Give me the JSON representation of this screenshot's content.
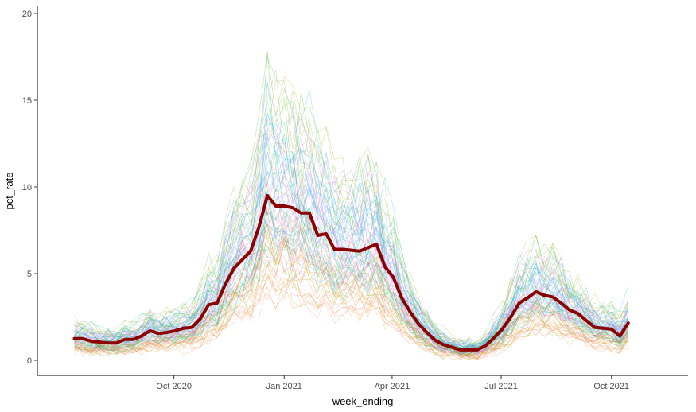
{
  "chart_data": {
    "type": "line",
    "xlabel": "week_ending",
    "ylabel": "pct_rate",
    "x_axis": {
      "type": "date",
      "range": [
        "2020-07-03",
        "2021-11-12"
      ],
      "ticks": [
        {
          "date": "2020-10-01",
          "label": "Oct 2020"
        },
        {
          "date": "2021-01-01",
          "label": "Jan 2021"
        },
        {
          "date": "2021-04-01",
          "label": "Apr 2021"
        },
        {
          "date": "2021-07-01",
          "label": "Jul 2021"
        },
        {
          "date": "2021-10-01",
          "label": "Oct 2021"
        }
      ]
    },
    "y_axis": {
      "range": [
        0,
        20
      ],
      "ticks": [
        0,
        5,
        10,
        15,
        20
      ]
    },
    "grid": false,
    "legend": "none",
    "background_series": {
      "count": 80,
      "line_width": 0.6,
      "opacity": 0.35,
      "colors": [
        "#F8766D",
        "#E7861B",
        "#C59900",
        "#95A900",
        "#39B600",
        "#00BF7D",
        "#00BFC4",
        "#00ACFC",
        "#619CFF",
        "#C77CFF",
        "#F564E3",
        "#FF64B0"
      ]
    },
    "series": [
      {
        "color": "#8B0000",
        "line_width": 4,
        "points": [
          [
            "2020-07-10",
            1.25
          ],
          [
            "2020-07-17",
            1.25
          ],
          [
            "2020-07-24",
            1.1
          ],
          [
            "2020-07-31",
            1.05
          ],
          [
            "2020-08-07",
            1.0
          ],
          [
            "2020-08-14",
            1.0
          ],
          [
            "2020-08-21",
            1.2
          ],
          [
            "2020-08-28",
            1.2
          ],
          [
            "2020-09-04",
            1.4
          ],
          [
            "2020-09-11",
            1.7
          ],
          [
            "2020-09-18",
            1.55
          ],
          [
            "2020-09-25",
            1.6
          ],
          [
            "2020-10-02",
            1.7
          ],
          [
            "2020-10-09",
            1.85
          ],
          [
            "2020-10-16",
            1.9
          ],
          [
            "2020-10-23",
            2.4
          ],
          [
            "2020-10-30",
            3.2
          ],
          [
            "2020-11-06",
            3.3
          ],
          [
            "2020-11-13",
            4.4
          ],
          [
            "2020-11-20",
            5.3
          ],
          [
            "2020-11-27",
            5.8
          ],
          [
            "2020-12-04",
            6.3
          ],
          [
            "2020-12-11",
            7.7
          ],
          [
            "2020-12-18",
            9.5
          ],
          [
            "2020-12-25",
            8.9
          ],
          [
            "2021-01-01",
            8.9
          ],
          [
            "2021-01-08",
            8.8
          ],
          [
            "2021-01-15",
            8.5
          ],
          [
            "2021-01-22",
            8.5
          ],
          [
            "2021-01-29",
            7.2
          ],
          [
            "2021-02-05",
            7.3
          ],
          [
            "2021-02-12",
            6.4
          ],
          [
            "2021-02-19",
            6.4
          ],
          [
            "2021-02-26",
            6.35
          ],
          [
            "2021-03-05",
            6.3
          ],
          [
            "2021-03-12",
            6.5
          ],
          [
            "2021-03-19",
            6.7
          ],
          [
            "2021-03-26",
            5.4
          ],
          [
            "2021-04-02",
            4.8
          ],
          [
            "2021-04-09",
            3.6
          ],
          [
            "2021-04-16",
            2.8
          ],
          [
            "2021-04-23",
            2.1
          ],
          [
            "2021-04-30",
            1.6
          ],
          [
            "2021-05-07",
            1.15
          ],
          [
            "2021-05-14",
            0.9
          ],
          [
            "2021-05-21",
            0.75
          ],
          [
            "2021-05-28",
            0.6
          ],
          [
            "2021-06-04",
            0.6
          ],
          [
            "2021-06-11",
            0.6
          ],
          [
            "2021-06-18",
            0.85
          ],
          [
            "2021-06-25",
            1.3
          ],
          [
            "2021-07-02",
            1.8
          ],
          [
            "2021-07-09",
            2.5
          ],
          [
            "2021-07-16",
            3.3
          ],
          [
            "2021-07-23",
            3.6
          ],
          [
            "2021-07-30",
            3.95
          ],
          [
            "2021-08-06",
            3.75
          ],
          [
            "2021-08-13",
            3.65
          ],
          [
            "2021-08-20",
            3.3
          ],
          [
            "2021-08-27",
            2.9
          ],
          [
            "2021-09-03",
            2.7
          ],
          [
            "2021-09-10",
            2.3
          ],
          [
            "2021-09-17",
            1.9
          ],
          [
            "2021-09-24",
            1.85
          ],
          [
            "2021-10-01",
            1.8
          ],
          [
            "2021-10-08",
            1.4
          ],
          [
            "2021-10-15",
            2.15
          ]
        ]
      }
    ]
  }
}
